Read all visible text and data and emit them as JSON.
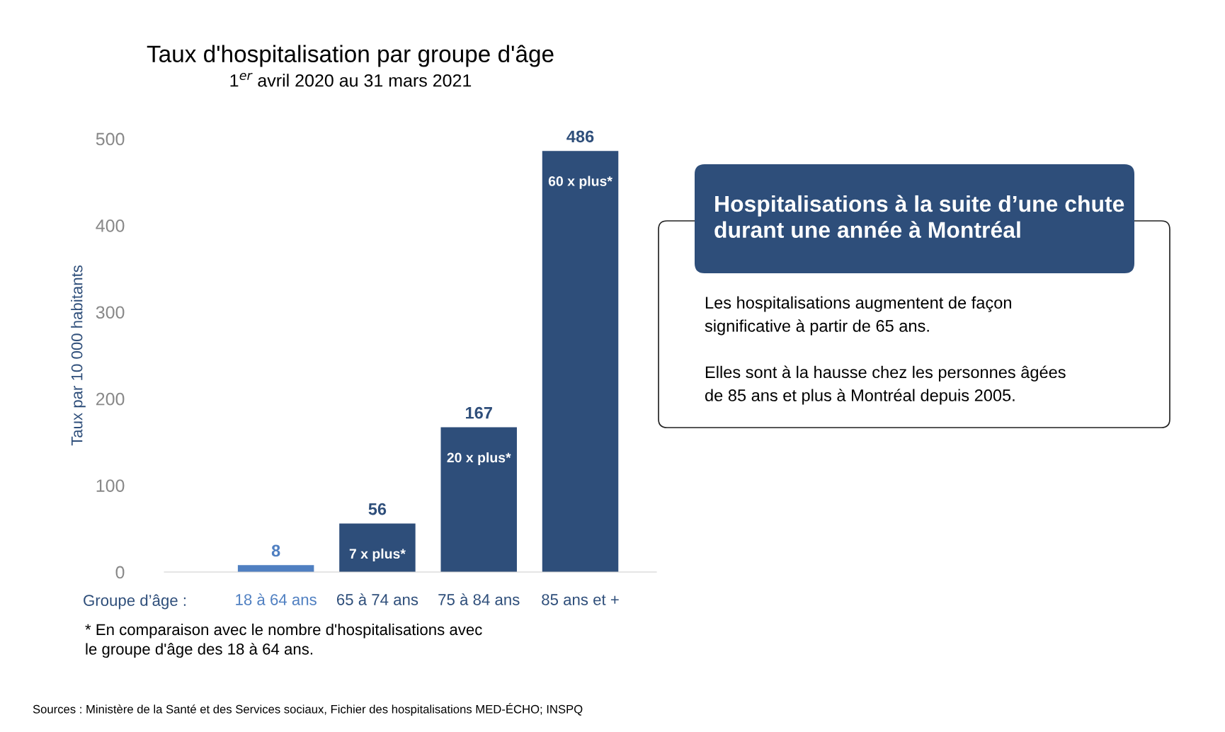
{
  "chart_data": [
    {
      "type": "bar",
      "title": "Taux d'hospitalisation par groupe d'âge",
      "subtitle": "1$^{er}$ avril 2020 au 31 mars 2021",
      "xlabel": "Groupe d’âge :",
      "ylabel": "Taux par 10 000 habitants",
      "categories": [
        "18 à 64 ans",
        "65 à 74 ans",
        "75 à 84 ans",
        "85 ans et +"
      ],
      "values": [
        8,
        56,
        167,
        486
      ],
      "colors": [
        "#4f7fc1",
        "#2e4e7a",
        "#2e4e7a",
        "#2e4e7a"
      ],
      "ylim": [
        0,
        500
      ],
      "yticks": [
        0,
        100,
        200,
        300,
        400,
        500
      ],
      "grid": false,
      "data_labels": true,
      "annotations": [
        {
          "text": "7 x plus*",
          "x": "65 à 74 ans",
          "y": 56
        },
        {
          "text": "20 x plus*",
          "x": "75 à 84 ans",
          "y": 167
        },
        {
          "text": "60 x plus*",
          "x": "85 ans et +",
          "y": 486
        },
        "* En comparaison avec le nombre d'hospitalisations avec\nle groupe d'âge des 18 à 64 ans.",
        "Sources : Ministère de la Santé et des Services sociaux, Fichier des hospitalisations MED-ÉCHO; INSPQ"
      ]
    },
    {
      "type": "other",
      "title": "Hospitalisations à la suite d’une chute\ndurant une année à Montréal",
      "annotations": [
        "Les hospitalisations augmentent de façon\nsignificative à partir de 65 ans.",
        "Elles sont à la hausse chez les personnes âgées\nde 85 ans et plus à Montréal depuis 2005."
      ]
    }
  ]
}
